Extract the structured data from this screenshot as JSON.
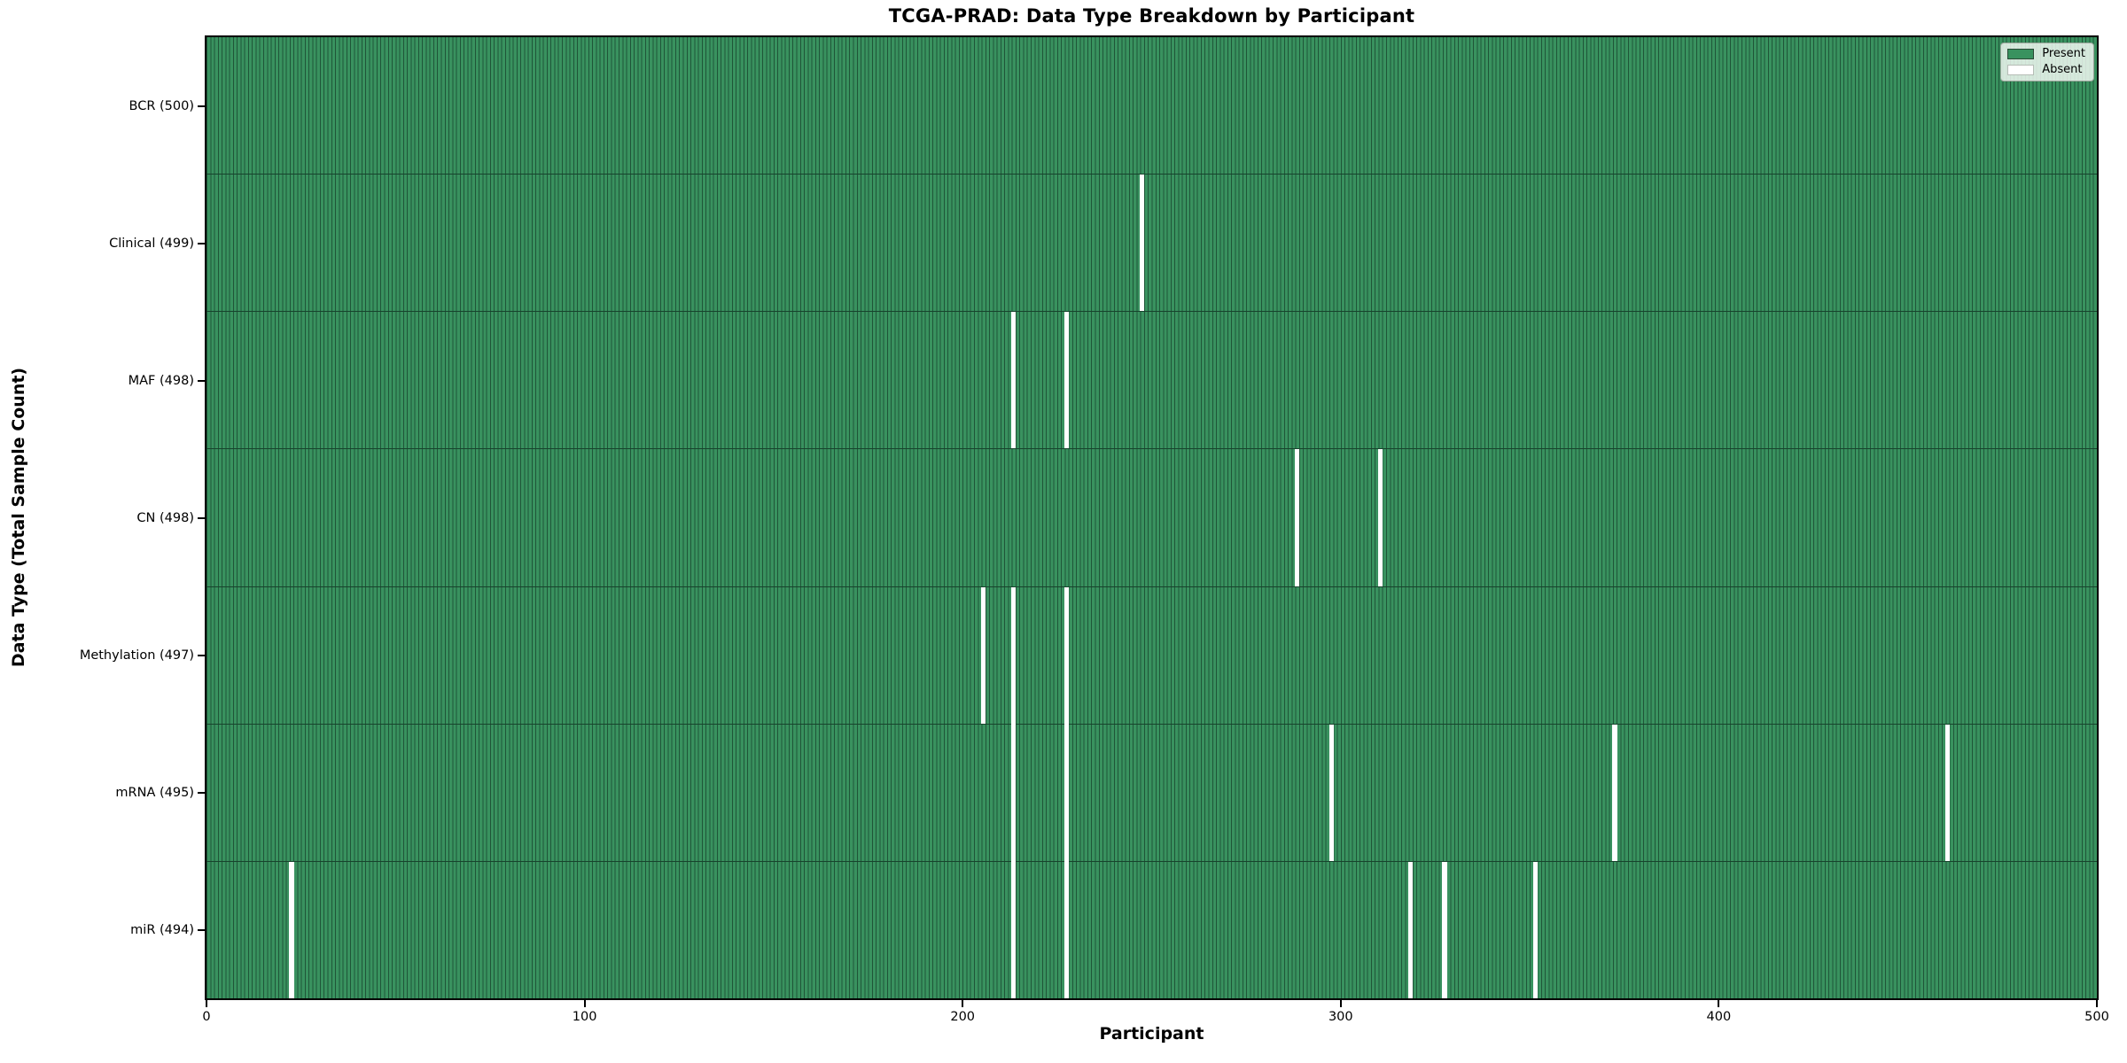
{
  "figure": {
    "title": "TCGA-PRAD: Data Type Breakdown by Participant",
    "xlabel": "Participant",
    "ylabel": "Data Type (Total Sample Count)"
  },
  "colors": {
    "present_fill": "#39925f",
    "bar_edge": "#1f5538",
    "row_separator": "#17432c",
    "absent": "#ffffff",
    "spine": "#000000"
  },
  "chart_data": {
    "type": "heatmap",
    "title": "TCGA-PRAD: Data Type Breakdown by Participant",
    "xlabel": "Participant",
    "ylabel": "Data Type (Total Sample Count)",
    "x_range": [
      0,
      500
    ],
    "x_ticks": [
      0,
      100,
      200,
      300,
      400,
      500
    ],
    "n_participants": 500,
    "grid": false,
    "legend": [
      "Present",
      "Absent"
    ],
    "legend_position": "upper right",
    "rows": [
      {
        "label": "BCR (500)",
        "data_type": "BCR",
        "total": 500,
        "absent_participants": []
      },
      {
        "label": "Clinical (499)",
        "data_type": "Clinical",
        "total": 499,
        "absent_participants": [
          247
        ]
      },
      {
        "label": "MAF (498)",
        "data_type": "MAF",
        "total": 498,
        "absent_participants": [
          213,
          227
        ]
      },
      {
        "label": "CN (498)",
        "data_type": "CN",
        "total": 498,
        "absent_participants": [
          288,
          310
        ]
      },
      {
        "label": "Methylation (497)",
        "data_type": "Methylation",
        "total": 497,
        "absent_participants": [
          205,
          213,
          227
        ]
      },
      {
        "label": "mRNA (495)",
        "data_type": "mRNA",
        "total": 495,
        "absent_participants": [
          213,
          227,
          297,
          372,
          460
        ]
      },
      {
        "label": "miR (494)",
        "data_type": "miR",
        "total": 494,
        "absent_participants": [
          22,
          213,
          227,
          318,
          327,
          351
        ]
      }
    ]
  }
}
